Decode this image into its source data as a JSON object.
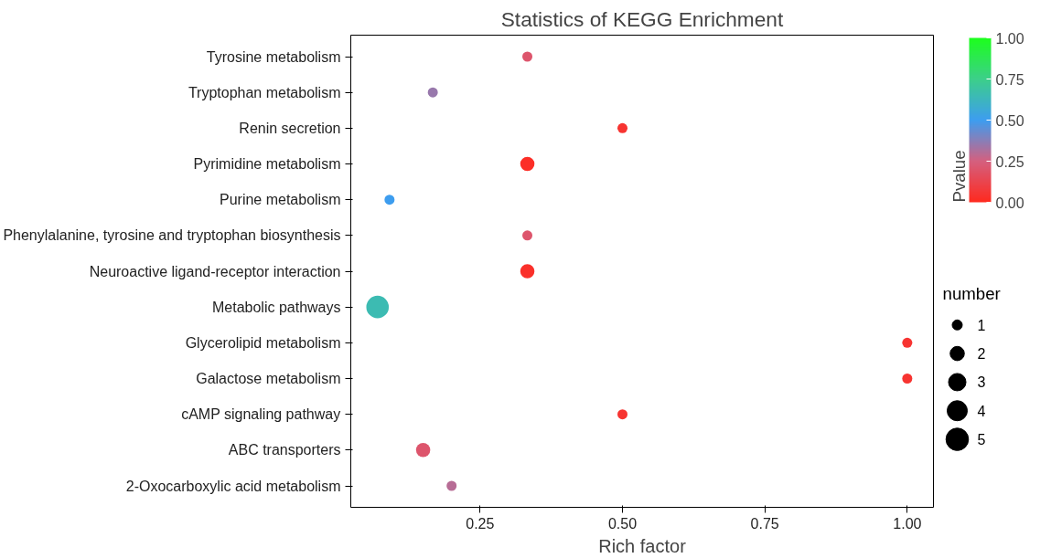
{
  "chart_data": {
    "type": "bubble",
    "title": "Statistics of KEGG Enrichment",
    "xlabel": "Rich factor",
    "clabel": "Pvalue",
    "legend_title": "number",
    "categories": [
      "Tyrosine metabolism",
      "Tryptophan metabolism",
      "Renin secretion",
      "Pyrimidine metabolism",
      "Purine metabolism",
      "Phenylalanine, tyrosine and tryptophan biosynthesis",
      "Neuroactive ligand-receptor interaction",
      "Metabolic pathways",
      "Glycerolipid metabolism",
      "Galactose metabolism",
      "cAMP signaling pathway",
      "ABC transporters",
      "2-Oxocarboxylic acid metabolism"
    ],
    "values": [
      0.333,
      0.167,
      0.5,
      0.333,
      0.091,
      0.333,
      0.333,
      0.07,
      1.0,
      1.0,
      0.5,
      0.15,
      0.2
    ],
    "sizes": [
      1,
      1,
      1,
      2,
      1,
      1,
      2,
      5,
      1,
      1,
      1,
      2,
      1
    ],
    "cvalues": [
      0.2,
      0.35,
      0.05,
      0.02,
      0.5,
      0.2,
      0.03,
      0.65,
      0.05,
      0.05,
      0.05,
      0.2,
      0.3
    ],
    "size_legend": [
      1,
      2,
      3,
      4,
      5
    ],
    "orientation": "horizontal",
    "xlim": [
      0.023,
      1.046
    ],
    "xticks": [
      0.25,
      {
        "value": 0.5,
        "label": "0.50"
      },
      0.75,
      {
        "value": 1.0,
        "label": "1.00"
      }
    ],
    "clim": [
      0,
      1
    ],
    "cticks": [
      {
        "value": 0,
        "label": "0.00"
      },
      0.25,
      {
        "value": 0.5,
        "label": "0.50"
      },
      0.75,
      {
        "value": 1.0,
        "label": "1.00"
      }
    ],
    "grid": false
  }
}
